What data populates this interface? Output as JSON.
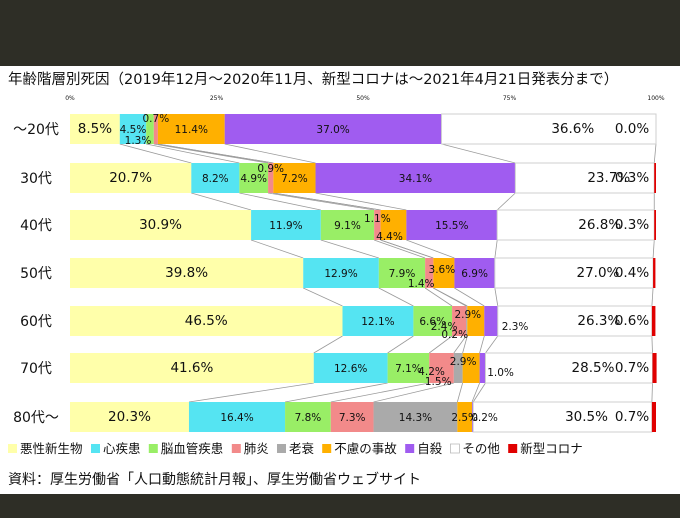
{
  "chart_data": {
    "type": "bar",
    "title": "年齢階層別死因（2019年12月～2020年11月、新型コロナは～2021年4月21日発表分まで）",
    "axis_ticks": [
      "0%",
      "25%",
      "50%",
      "75%",
      "100%"
    ],
    "xlim": [
      0,
      100
    ],
    "orientation": "horizontal",
    "stacked": true,
    "categories": [
      "～20代",
      "30代",
      "40代",
      "50代",
      "60代",
      "70代",
      "80代～"
    ],
    "series": [
      {
        "name": "悪性新生物",
        "color": "#ffffaa",
        "values": [
          8.5,
          20.7,
          30.9,
          39.8,
          46.5,
          41.6,
          20.3
        ]
      },
      {
        "name": "心疾患",
        "color": "#55e4f2",
        "values": [
          4.5,
          8.2,
          11.9,
          12.9,
          12.1,
          12.6,
          16.4
        ]
      },
      {
        "name": "脳血管疾患",
        "color": "#99ee66",
        "values": [
          1.3,
          4.9,
          9.1,
          7.9,
          6.6,
          7.1,
          7.8
        ]
      },
      {
        "name": "肺炎",
        "color": "#f28a8a",
        "values": [
          0.7,
          0.9,
          1.1,
          1.4,
          2.4,
          4.2,
          7.3
        ]
      },
      {
        "name": "老衰",
        "color": "#aaaaaa",
        "values": [
          0,
          0,
          0,
          0,
          0.2,
          1.5,
          14.3
        ]
      },
      {
        "name": "不慮の事故",
        "color": "#ffb000",
        "values": [
          11.4,
          7.2,
          4.4,
          3.6,
          2.9,
          2.9,
          2.5
        ]
      },
      {
        "name": "自殺",
        "color": "#a05cf0",
        "values": [
          37.0,
          34.1,
          15.5,
          6.9,
          2.3,
          1.0,
          0.2
        ]
      },
      {
        "name": "その他",
        "color": "#ffffff",
        "values": [
          36.6,
          23.7,
          26.8,
          27.0,
          26.3,
          28.5,
          30.5
        ]
      },
      {
        "name": "新型コロナ",
        "color": "#e00000",
        "values": [
          0.0,
          0.3,
          0.3,
          0.4,
          0.6,
          0.7,
          0.7
        ]
      }
    ],
    "labels": [
      [
        "8.5%",
        "4.5%",
        "1.3%",
        "0.7%",
        "",
        "11.4%",
        "37.0%",
        "36.6%",
        "0.0%"
      ],
      [
        "20.7%",
        "8.2%",
        "4.9%",
        "0.9%",
        "",
        "7.2%",
        "34.1%",
        "23.7%",
        "0.3%"
      ],
      [
        "30.9%",
        "11.9%",
        "9.1%",
        "1.1%",
        "",
        "4.4%",
        "15.5%",
        "26.8%",
        "0.3%"
      ],
      [
        "39.8%",
        "12.9%",
        "7.9%",
        "1.4%",
        "",
        "3.6%",
        "6.9%",
        "27.0%",
        "0.4%"
      ],
      [
        "46.5%",
        "12.1%",
        "6.6%",
        "2.4%",
        "0.2%",
        "2.9%",
        "2.3%",
        "26.3%",
        "0.6%"
      ],
      [
        "41.6%",
        "12.6%",
        "7.1%",
        "4.2%",
        "1.5%",
        "2.9%",
        "1.0%",
        "28.5%",
        "0.7%"
      ],
      [
        "20.3%",
        "16.4%",
        "7.8%",
        "7.3%",
        "14.3%",
        "2.5%",
        "0.2%",
        "30.5%",
        "0.7%"
      ]
    ],
    "legend_position": "bottom",
    "grid": false,
    "colors": {
      "frame_background": "#2e2e26",
      "panel_background": "#ffffff",
      "bar_border": "#cfcfcf",
      "connector": "#9a9a9a"
    }
  },
  "source": "資料：厚生労働省「人口動態統計月報」、厚生労働省ウェブサイト"
}
